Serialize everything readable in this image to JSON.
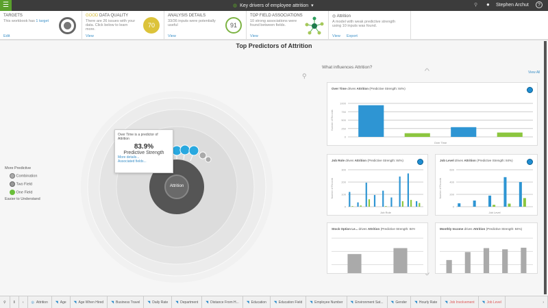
{
  "header": {
    "title": "Key drivers of employee attrition",
    "user": "Stephen Archut",
    "help": "?"
  },
  "cards": [
    {
      "title": "TARGETS",
      "text": "This workbook has",
      "link_inline": "1 target",
      "action": "Edit"
    },
    {
      "title_accent": "GOOD",
      "title": "DATA QUALITY",
      "text": "There are 26 issues with your data. Click below to learn more.",
      "score": "70",
      "action": "View"
    },
    {
      "title": "ANALYSIS DETAILS",
      "text": "33/36 inputs were potentially useful",
      "score": "91",
      "action": "View"
    },
    {
      "title": "TOP FIELD ASSOCIATIONS",
      "text": "10 strong associations were found between fields.",
      "action": "View"
    },
    {
      "title": "Attrition",
      "text": "A model with weak predictive strength using 10 inputs was found.",
      "action": "View",
      "action2": "Export"
    }
  ],
  "main": {
    "title_prefix": "Top Predictors of",
    "title_target": "Attrition",
    "center_label": "Attrition"
  },
  "legend": {
    "top": "More Predictive",
    "items": [
      "Combination",
      "Two Field",
      "One Field"
    ],
    "bottom": "Easier to Understand"
  },
  "tooltip": {
    "text": "Over Time is a predictor of Attrition",
    "value": "83.9%",
    "label": "Predictive Strength",
    "link1": "More details...",
    "link2": "Associated fields..."
  },
  "panel": {
    "title": "What influences Attrition?",
    "view_all": "View All"
  },
  "chart_data": [
    {
      "type": "bar",
      "field": "Over Time",
      "drives": "drives",
      "target": "Attrition",
      "strength": "(Predictive Strength: 84%)",
      "xlabel": "Over Time",
      "ylabel": "Number of Records",
      "ylim": [
        0,
        1000
      ],
      "ticks": [
        "1000",
        "750",
        "500",
        "250",
        "0"
      ],
      "values": [
        944,
        110,
        290,
        130
      ]
    },
    {
      "type": "bar",
      "field": "Job Role",
      "drives": "drives",
      "target": "Attrition",
      "strength": "(Predictive Strength: 84%)",
      "xlabel": "Job Role",
      "ylabel": "Number of Records",
      "ylim": [
        0,
        300
      ],
      "ticks": [
        "300",
        "200",
        "100",
        "0"
      ],
      "values": [
        120,
        5,
        35,
        10,
        195,
        60,
        95,
        0,
        130,
        5,
        75,
        0,
        245,
        45,
        270,
        55,
        45,
        30
      ]
    },
    {
      "type": "bar",
      "field": "Job Level",
      "drives": "drives",
      "target": "Attrition",
      "strength": "(Predictive Strength: 84%)",
      "xlabel": "Job Level",
      "ylabel": "Number of Records",
      "ylim": [
        0,
        600
      ],
      "ticks": [
        "600",
        "400",
        "200",
        "0"
      ],
      "values": [
        55,
        0,
        100,
        0,
        180,
        30,
        480,
        50,
        400,
        140
      ]
    },
    {
      "type": "bar",
      "field": "Stock Option Le...",
      "drives": "drives",
      "target": "Attrition",
      "strength": "(Predictive Strength: 84%)",
      "values": [
        60,
        75
      ]
    },
    {
      "type": "bar",
      "field": "Monthly Income",
      "drives": "drives",
      "target": "Attrition",
      "strength": "(Predictive Strength: 84%)",
      "values": [
        45,
        65,
        75,
        72,
        76
      ]
    }
  ],
  "tabs": [
    "Attrition",
    "Age",
    "Age When Hired",
    "Business Travel",
    "Daily Rate",
    "Department",
    "Distance From H...",
    "Education",
    "Education Field",
    "Employee Number",
    "Environment Sat...",
    "Gender",
    "Hourly Rate",
    "Job Involvement",
    "Job Level"
  ]
}
